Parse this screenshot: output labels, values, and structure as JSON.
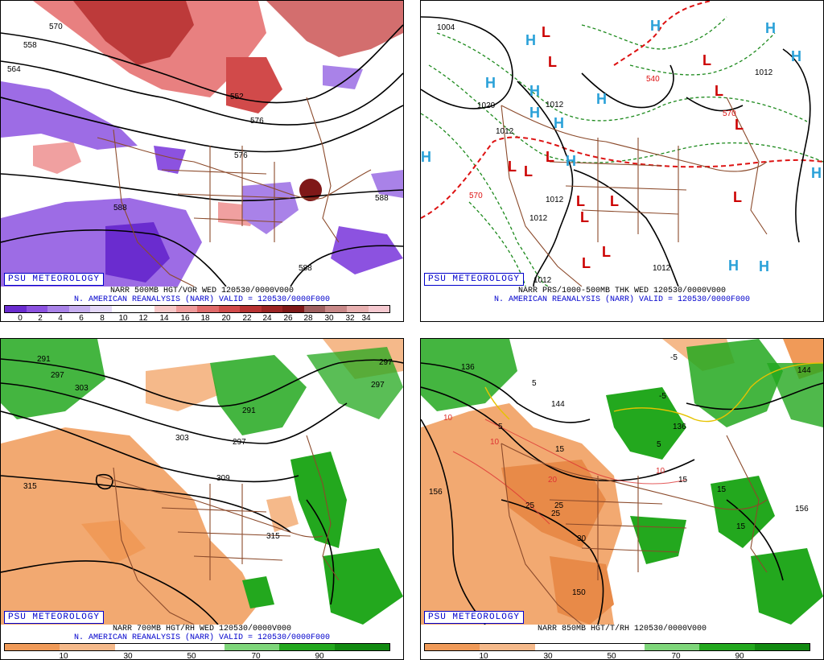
{
  "panels": {
    "p1": {
      "brand": "PSU METEOROLOGY",
      "caption_line1": "NARR 500MB HGT/VOR WED 120530/0000V000",
      "caption_line2": "N. AMERICAN REANALYSIS (NARR) VALID = 120530/0000F000",
      "colorbar_ticks": [
        "0",
        "2",
        "4",
        "6",
        "8",
        "10",
        "12",
        "14",
        "16",
        "18",
        "20",
        "22",
        "24",
        "26",
        "28",
        "30",
        "32",
        "34"
      ],
      "contour_labels": [
        "558",
        "564",
        "570",
        "576",
        "552",
        "588",
        "588",
        "588",
        "576"
      ]
    },
    "p2": {
      "brand": "PSU METEOROLOGY",
      "caption_line1": "NARR PRS/1000-500MB THK WED 120530/0000V000",
      "caption_line2": "N. AMERICAN REANALYSIS (NARR) VALID = 120530/0000F000",
      "contour_labels": [
        "1004",
        "1020",
        "1012",
        "1012",
        "1012",
        "1012",
        "1012",
        "1012",
        "570",
        "540",
        "570",
        "1012"
      ],
      "high_label": "H",
      "low_label": "L"
    },
    "p3": {
      "brand": "PSU METEOROLOGY",
      "caption_line1": "NARR 700MB HGT/RH WED 120530/0000V000",
      "caption_line2": "N. AMERICAN REANALYSIS (NARR) VALID = 120530/0000F000",
      "colorbar_ticks": [
        "10",
        "30",
        "50",
        "70",
        "90"
      ],
      "contour_labels": [
        "291",
        "297",
        "303",
        "303",
        "315",
        "309",
        "315",
        "291",
        "297",
        "297",
        "297"
      ]
    },
    "p4": {
      "brand": "PSU METEOROLOGY",
      "caption_line1": "NARR 850MB HGT/T/RH 120530/0000V000",
      "colorbar_ticks": [
        "10",
        "30",
        "50",
        "70",
        "90"
      ],
      "contour_labels": [
        "136",
        "144",
        "156",
        "156",
        "150",
        "144",
        "136"
      ],
      "temp_labels": [
        "-5",
        "5",
        "5",
        "15",
        "15",
        "15",
        "15",
        "25",
        "25",
        "25",
        "30",
        "-5",
        "5",
        "10",
        "10",
        "20",
        "10"
      ]
    }
  },
  "colors": {
    "vorticity": [
      "#6a2ccf",
      "#8c52e0",
      "#a982e8",
      "#c6aef0",
      "#e4d8f8",
      "#ffffff",
      "#ffffff",
      "#f7c8c8",
      "#ef9a9a",
      "#e06a6a",
      "#d14a4a",
      "#b83232",
      "#9c2424",
      "#7f1818",
      "#a06060",
      "#c88888",
      "#e8b0b0",
      "#f5c9d0"
    ],
    "rh": [
      "#f09a58",
      "#f5b98a",
      "#ffffff",
      "#ffffff",
      "#7ed67a",
      "#23a81e",
      "#118a10"
    ],
    "map_lines": "#8b4a2b",
    "high": "#2aa1d8",
    "low": "#cc0000"
  }
}
